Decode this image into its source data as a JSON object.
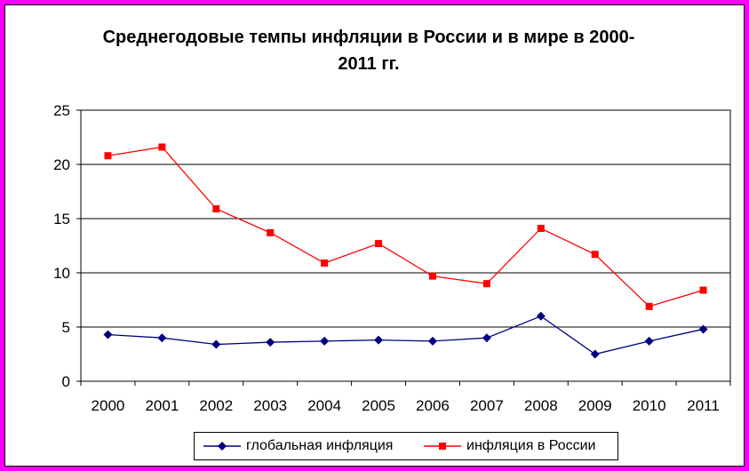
{
  "chart_data": {
    "type": "line",
    "title": "Среднегодовые темпы инфляции в России и в мире в 2000-2011 гг.",
    "title_lines": [
      "Среднегодовые темпы инфляции в России и в мире в 2000-",
      "2011 гг."
    ],
    "xlabel": "",
    "ylabel": "",
    "categories": [
      "2000",
      "2001",
      "2002",
      "2003",
      "2004",
      "2005",
      "2006",
      "2007",
      "2008",
      "2009",
      "2010",
      "2011"
    ],
    "ylim": [
      0,
      25
    ],
    "yticks": [
      "0",
      "5",
      "10",
      "15",
      "20",
      "25"
    ],
    "grid": "horizontal",
    "legend_position": "bottom",
    "series": [
      {
        "name": "глобальная инфляция",
        "color": "#000080",
        "marker": "diamond",
        "values": [
          4.3,
          4.0,
          3.4,
          3.6,
          3.7,
          3.8,
          3.7,
          4.0,
          6.0,
          2.5,
          3.7,
          4.8
        ]
      },
      {
        "name": "инфляция в России",
        "color": "#ff0000",
        "marker": "square",
        "values": [
          20.8,
          21.6,
          15.9,
          13.7,
          10.9,
          12.7,
          9.7,
          9.0,
          14.1,
          11.7,
          6.9,
          8.4
        ]
      }
    ]
  },
  "colors": {
    "frame": "#ff00ff",
    "grid": "#000000"
  }
}
